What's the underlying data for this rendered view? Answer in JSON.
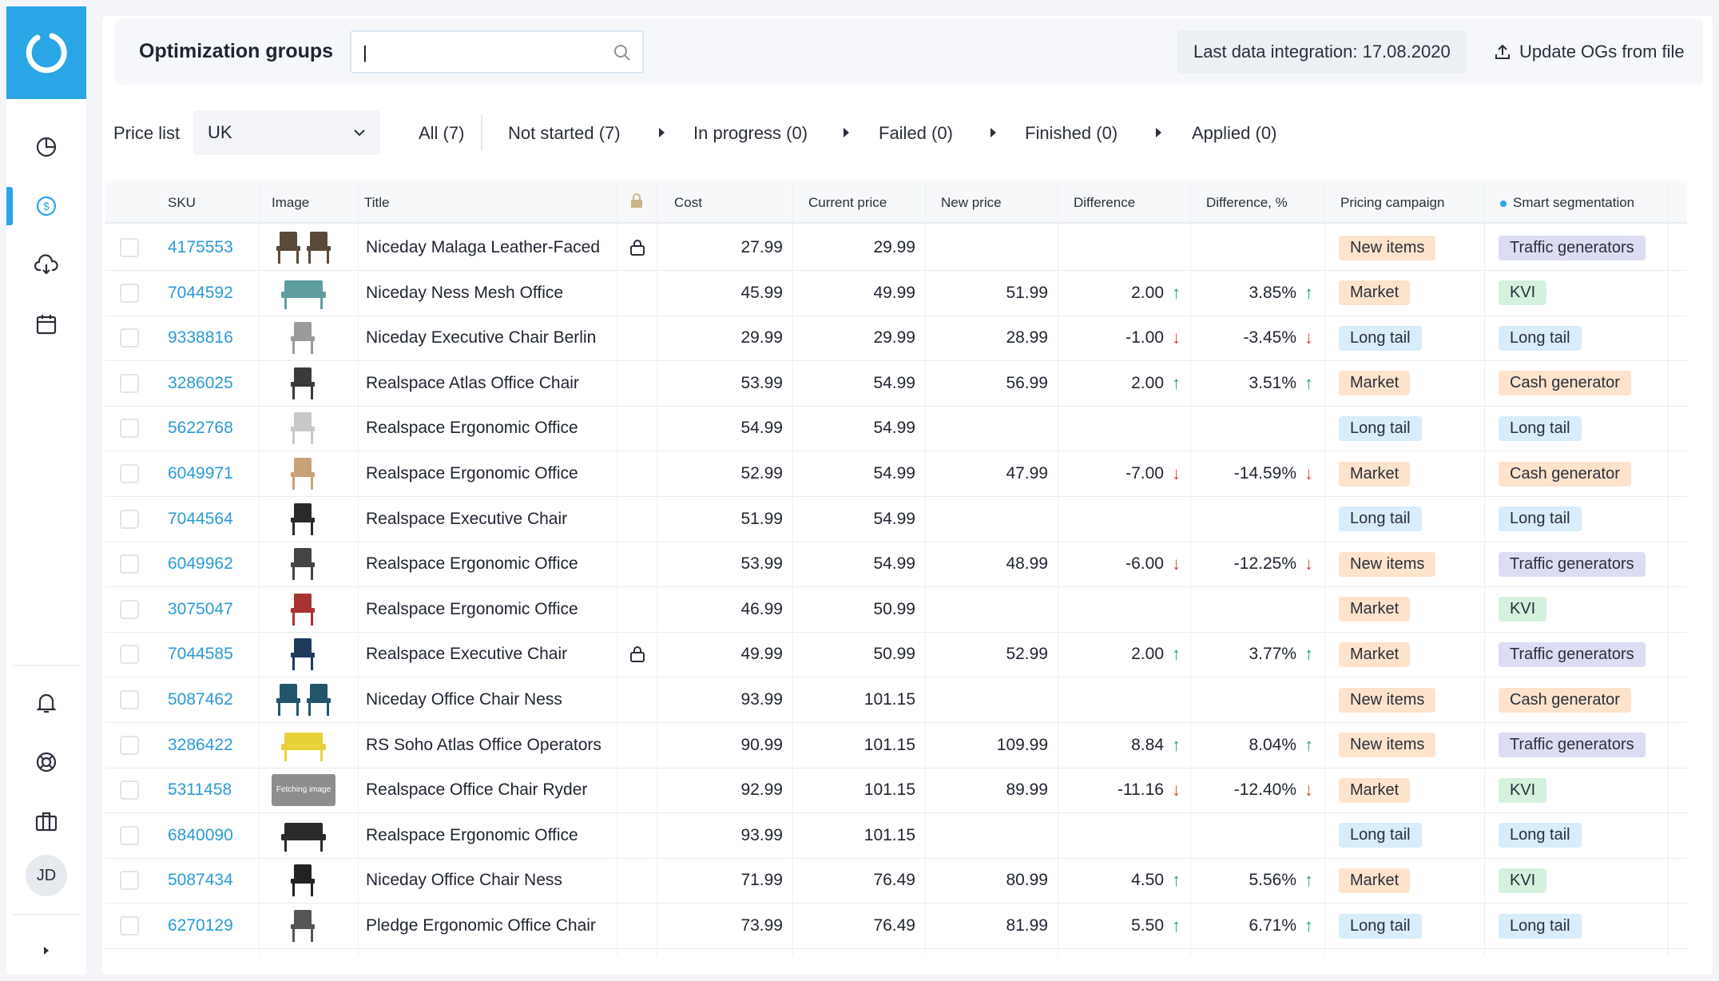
{
  "header": {
    "title": "Optimization groups",
    "search_value": "|",
    "integration": "Last data integration: 17.08.2020",
    "update_label": "Update OGs from file"
  },
  "filters": {
    "price_list_label": "Price list",
    "price_list_value": "UK",
    "statuses": [
      "All (7)",
      "Not started (7)",
      "In progress (0)",
      "Failed (0)",
      "Finished (0)",
      "Applied (0)"
    ]
  },
  "sidebar": {
    "avatar": "JD"
  },
  "table": {
    "headers": {
      "sku": "SKU",
      "image": "Image",
      "title": "Title",
      "cost": "Cost",
      "current": "Current price",
      "new": "New price",
      "diff": "Difference",
      "diffpct": "Difference, %",
      "campaign": "Pricing campaign",
      "smart": "Smart segmentation"
    },
    "rows": [
      {
        "sku": "4175553",
        "title": "Niceday Malaga Leather-Faced",
        "locked": true,
        "cost": "27.99",
        "current": "29.99",
        "new": "",
        "diff": "",
        "diffpct": "",
        "dir": "",
        "campaign": "New items",
        "smart": "Traffic generators",
        "img": "double-chair"
      },
      {
        "sku": "7044592",
        "title": "Niceday Ness Mesh Office",
        "locked": false,
        "cost": "45.99",
        "current": "49.99",
        "new": "51.99",
        "diff": "2.00",
        "diffpct": "3.85%",
        "dir": "up",
        "campaign": "Market",
        "smart": "KVI",
        "img": "teal-sofa"
      },
      {
        "sku": "9338816",
        "title": "Niceday Executive Chair Berlin",
        "locked": false,
        "cost": "29.99",
        "current": "29.99",
        "new": "28.99",
        "diff": "-1.00",
        "diffpct": "-3.45%",
        "dir": "down",
        "campaign": "Long tail",
        "smart": "Long tail",
        "img": "grey-chair"
      },
      {
        "sku": "3286025",
        "title": "Realspace Atlas Office Chair",
        "locked": false,
        "cost": "53.99",
        "current": "54.99",
        "new": "56.99",
        "diff": "2.00",
        "diffpct": "3.51%",
        "dir": "up",
        "campaign": "Market",
        "smart": "Cash generator",
        "img": "dark-chair"
      },
      {
        "sku": "5622768",
        "title": "Realspace Ergonomic Office",
        "locked": false,
        "cost": "54.99",
        "current": "54.99",
        "new": "",
        "diff": "",
        "diffpct": "",
        "dir": "",
        "campaign": "Long tail",
        "smart": "Long tail",
        "img": "white-chair"
      },
      {
        "sku": "6049971",
        "title": "Realspace Ergonomic Office",
        "locked": false,
        "cost": "52.99",
        "current": "54.99",
        "new": "47.99",
        "diff": "-7.00",
        "diffpct": "-14.59%",
        "dir": "down",
        "campaign": "Market",
        "smart": "Cash generator",
        "img": "wood-chair"
      },
      {
        "sku": "7044564",
        "title": "Realspace Executive Chair",
        "locked": false,
        "cost": "51.99",
        "current": "54.99",
        "new": "",
        "diff": "",
        "diffpct": "",
        "dir": "",
        "campaign": "Long tail",
        "smart": "Long tail",
        "img": "black-chair"
      },
      {
        "sku": "6049962",
        "title": "Realspace Ergonomic Office",
        "locked": false,
        "cost": "53.99",
        "current": "54.99",
        "new": "48.99",
        "diff": "-6.00",
        "diffpct": "-12.25%",
        "dir": "down",
        "campaign": "New items",
        "smart": "Traffic generators",
        "img": "dark-armchair"
      },
      {
        "sku": "3075047",
        "title": "Realspace Ergonomic Office",
        "locked": false,
        "cost": "46.99",
        "current": "50.99",
        "new": "",
        "diff": "",
        "diffpct": "",
        "dir": "",
        "campaign": "Market",
        "smart": "KVI",
        "img": "red-chair"
      },
      {
        "sku": "7044585",
        "title": "Realspace Executive Chair",
        "locked": true,
        "cost": "49.99",
        "current": "50.99",
        "new": "52.99",
        "diff": "2.00",
        "diffpct": "3.77%",
        "dir": "up",
        "campaign": "Market",
        "smart": "Traffic generators",
        "img": "navy-chair"
      },
      {
        "sku": "5087462",
        "title": "Niceday Office Chair Ness",
        "locked": false,
        "cost": "93.99",
        "current": "101.15",
        "new": "",
        "diff": "",
        "diffpct": "",
        "dir": "",
        "campaign": "New items",
        "smart": "Cash generator",
        "img": "teal-pair"
      },
      {
        "sku": "3286422",
        "title": "RS Soho Atlas Office Operators",
        "locked": false,
        "cost": "90.99",
        "current": "101.15",
        "new": "109.99",
        "diff": "8.84",
        "diffpct": "8.04%",
        "dir": "up",
        "campaign": "New items",
        "smart": "Traffic generators",
        "img": "yellow-bench"
      },
      {
        "sku": "5311458",
        "title": "Realspace Office Chair Ryder",
        "locked": false,
        "cost": "92.99",
        "current": "101.15",
        "new": "89.99",
        "diff": "-11.16",
        "diffpct": "-12.40%",
        "dir": "down",
        "campaign": "Market",
        "smart": "KVI",
        "img": "fetching",
        "img_text": "Fetching image"
      },
      {
        "sku": "6840090",
        "title": "Realspace Ergonomic Office",
        "locked": false,
        "cost": "93.99",
        "current": "101.15",
        "new": "",
        "diff": "",
        "diffpct": "",
        "dir": "",
        "campaign": "Long tail",
        "smart": "Long tail",
        "img": "black-bench"
      },
      {
        "sku": "5087434",
        "title": "Niceday Office Chair Ness",
        "locked": false,
        "cost": "71.99",
        "current": "76.49",
        "new": "80.99",
        "diff": "4.50",
        "diffpct": "5.56%",
        "dir": "up",
        "campaign": "Market",
        "smart": "KVI",
        "img": "bar-stool"
      },
      {
        "sku": "6270129",
        "title": "Pledge Ergonomic Office Chair",
        "locked": false,
        "cost": "73.99",
        "current": "76.49",
        "new": "81.99",
        "diff": "5.50",
        "diffpct": "6.71%",
        "dir": "up",
        "campaign": "Long tail",
        "smart": "Long tail",
        "img": "slim-chair"
      }
    ]
  }
}
